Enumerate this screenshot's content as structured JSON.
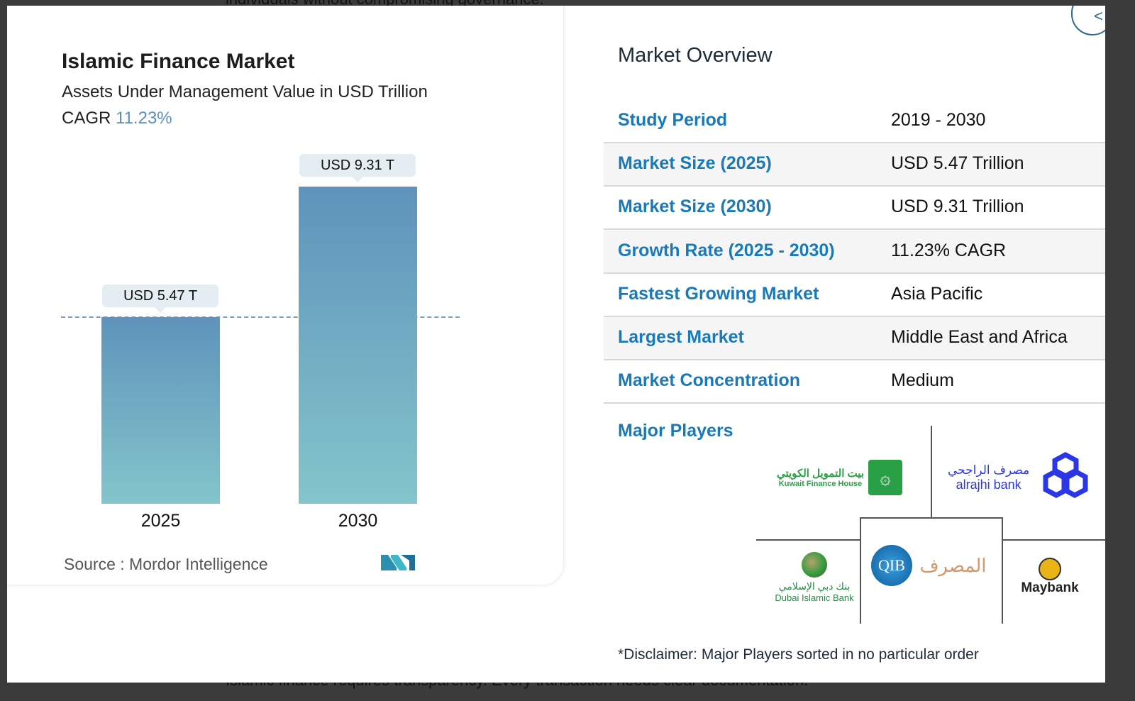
{
  "background_text": {
    "top": "individuals without compromising governance.",
    "bottom": "Islamic finance requires transparency. Every transaction needs clear documentation."
  },
  "chart": {
    "title": "Islamic Finance Market",
    "subtitle": "Assets Under Management Value in USD Trillion",
    "cagr_label": "CAGR",
    "cagr_value": "11.23%",
    "source": "Source :  Mordor Intelligence",
    "logo": "MI"
  },
  "chart_data": {
    "type": "bar",
    "categories": [
      "2025",
      "2030"
    ],
    "values": [
      5.47,
      9.31
    ],
    "data_labels": [
      "USD 5.47 T",
      "USD 9.31 T"
    ],
    "title": "Islamic Finance Market",
    "ylabel": "Assets Under Management Value in USD Trillion",
    "reference_line": 5.47,
    "colors": {
      "bar_top": "#5f93bb",
      "bar_bottom": "#83c5cb"
    }
  },
  "overview": {
    "title": "Market Overview",
    "rows": [
      {
        "label": "Study Period",
        "value": "2019 - 2030"
      },
      {
        "label": "Market Size (2025)",
        "value": "USD 5.47 Trillion"
      },
      {
        "label": "Market Size (2030)",
        "value": "USD 9.31 Trillion"
      },
      {
        "label": "Growth Rate (2025 - 2030)",
        "value": "11.23% CAGR"
      },
      {
        "label": "Fastest Growing Market",
        "value": "Asia Pacific"
      },
      {
        "label": "Largest Market",
        "value": "Middle East and Africa"
      },
      {
        "label": "Market Concentration",
        "value": "Medium"
      }
    ],
    "major_players_label": "Major Players",
    "players": {
      "kfh_ar": "بيت التمويل الكويتي",
      "kfh": "Kuwait Finance House",
      "alrajhi_ar": "مصرف الراجحي",
      "alrajhi": "alrajhi bank",
      "qib": "QIB",
      "qib_ar": "المصرف",
      "dib_ar": "بنك دبي الإسلامي",
      "dib": "Dubai Islamic Bank",
      "maybank": "Maybank"
    },
    "disclaimer": "*Disclaimer: Major Players sorted in no particular order"
  },
  "colors": {
    "accent": "#1a7ab8",
    "cagr": "#5b8fc0"
  }
}
